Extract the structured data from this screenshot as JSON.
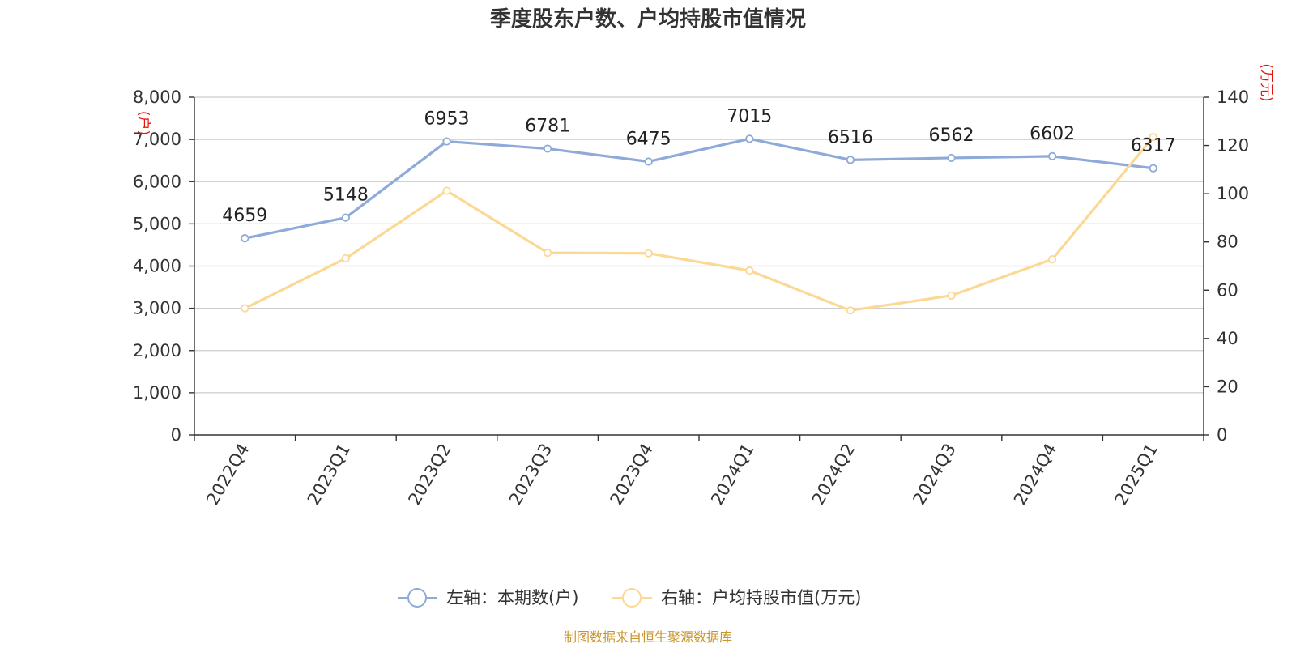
{
  "chart_data": {
    "type": "line",
    "title": "季度股东户数、户均持股市值情况",
    "categories": [
      "2022Q4",
      "2023Q1",
      "2023Q2",
      "2023Q3",
      "2023Q4",
      "2024Q1",
      "2024Q2",
      "2024Q3",
      "2024Q4",
      "2025Q1"
    ],
    "y_left": {
      "unit": "(户)",
      "ylim": [
        0,
        8000
      ],
      "ticks": [
        0,
        1000,
        2000,
        3000,
        4000,
        5000,
        6000,
        7000,
        8000
      ],
      "tick_labels": [
        "0",
        "1,000",
        "2,000",
        "3,000",
        "4,000",
        "5,000",
        "6,000",
        "7,000",
        "8,000"
      ]
    },
    "y_right": {
      "unit": "(万元)",
      "ylim": [
        0,
        140
      ],
      "ticks": [
        0,
        20,
        40,
        60,
        80,
        100,
        120,
        140
      ],
      "tick_labels": [
        "0",
        "20",
        "40",
        "60",
        "80",
        "100",
        "120",
        "140"
      ]
    },
    "grid": true,
    "legend_position": "bottom-center",
    "series": [
      {
        "name": "左轴：本期数(户)",
        "axis": "left",
        "color": "#8eaad9",
        "values": [
          4659,
          5148,
          6953,
          6781,
          6475,
          7015,
          6516,
          6562,
          6602,
          6317
        ],
        "data_labels": [
          "4659",
          "5148",
          "6953",
          "6781",
          "6475",
          "7015",
          "6516",
          "6562",
          "6602",
          "6317"
        ]
      },
      {
        "name": "右轴：户均持股市值(万元)",
        "axis": "right",
        "color": "#fcd895",
        "values": [
          52.5,
          73.2,
          101.2,
          75.5,
          75.3,
          68.1,
          51.6,
          57.8,
          72.8,
          123.5
        ]
      }
    ],
    "source_note": "制图数据来自恒生聚源数据库"
  }
}
